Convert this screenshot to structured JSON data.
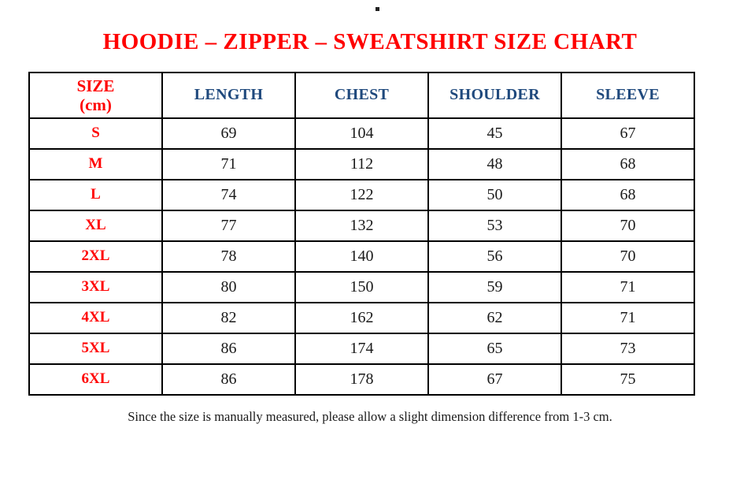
{
  "title": "HOODIE – ZIPPER – SWEATSHIRT SIZE CHART",
  "table": {
    "header": {
      "size_label": "SIZE",
      "size_unit": "(cm)",
      "columns": [
        "LENGTH",
        "CHEST",
        "SHOULDER",
        "SLEEVE"
      ]
    },
    "rows": [
      {
        "size": "S",
        "length": "69",
        "chest": "104",
        "shoulder": "45",
        "sleeve": "67"
      },
      {
        "size": "M",
        "length": "71",
        "chest": "112",
        "shoulder": "48",
        "sleeve": "68"
      },
      {
        "size": "L",
        "length": "74",
        "chest": "122",
        "shoulder": "50",
        "sleeve": "68"
      },
      {
        "size": "XL",
        "length": "77",
        "chest": "132",
        "shoulder": "53",
        "sleeve": "70"
      },
      {
        "size": "2XL",
        "length": "78",
        "chest": "140",
        "shoulder": "56",
        "sleeve": "70"
      },
      {
        "size": "3XL",
        "length": "80",
        "chest": "150",
        "shoulder": "59",
        "sleeve": "71"
      },
      {
        "size": "4XL",
        "length": "82",
        "chest": "162",
        "shoulder": "62",
        "sleeve": "71"
      },
      {
        "size": "5XL",
        "length": "86",
        "chest": "174",
        "shoulder": "65",
        "sleeve": "73"
      },
      {
        "size": "6XL",
        "length": "86",
        "chest": "178",
        "shoulder": "67",
        "sleeve": "75"
      }
    ]
  },
  "footer_note": "Since the size is manually measured, please allow a slight dimension difference from 1-3 cm.",
  "colors": {
    "title_red": "#ff0000",
    "header_blue": "#1f497d",
    "body_text": "#1a1a1a",
    "border_black": "#000000"
  }
}
